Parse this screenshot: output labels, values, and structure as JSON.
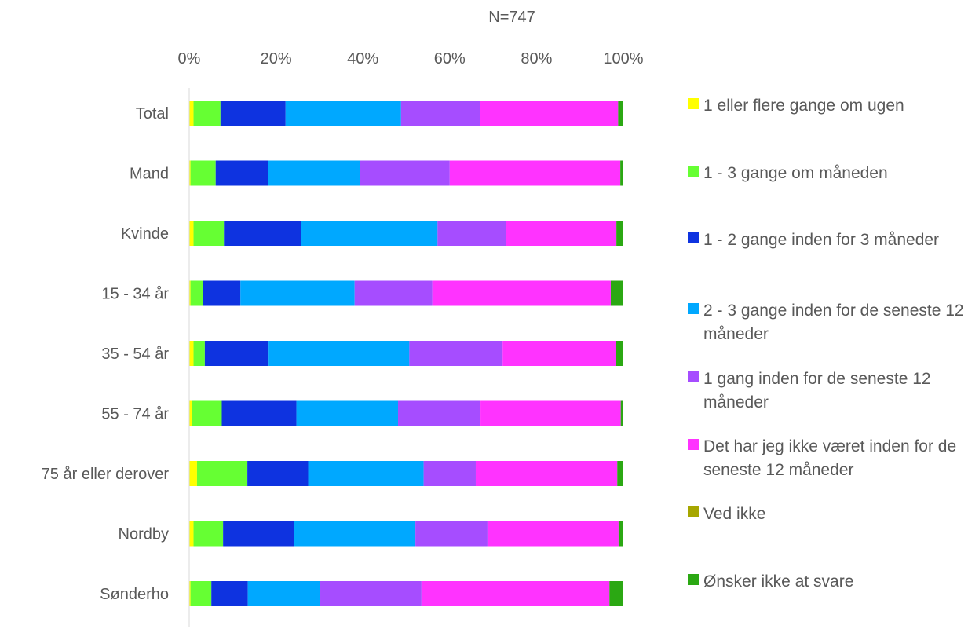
{
  "chart_data": {
    "type": "bar",
    "orientation": "horizontal",
    "stacked": "percent",
    "title": "N=747",
    "xlim": [
      0,
      100
    ],
    "x_ticks": [
      "0%",
      "20%",
      "40%",
      "60%",
      "80%",
      "100%"
    ],
    "grid": false,
    "legend_position": "right",
    "categories": [
      "Total",
      "Mand",
      "Kvinde",
      "15 - 34 år",
      "35 - 54 år",
      "55 - 74 år",
      "75 år eller derover",
      "Nordby",
      "Sønderho"
    ],
    "series": [
      {
        "name": "1 eller flere gange om ugen",
        "color": "#FFFF00",
        "values": [
          1,
          0.3,
          1,
          0.3,
          1,
          0.7,
          1.8,
          1,
          0.3
        ]
      },
      {
        "name": "1 - 3 gange om måneden",
        "color": "#66FF33",
        "values": [
          6.2,
          5.8,
          7,
          2.8,
          2.6,
          6.8,
          11.6,
          6.8,
          4.8
        ]
      },
      {
        "name": "1 - 2 gange inden for 3 måneder",
        "color": "#0E33E0",
        "values": [
          15,
          12,
          17.7,
          8.7,
          14.7,
          17.2,
          14,
          16.4,
          8.4
        ]
      },
      {
        "name": "2 - 3 gange inden for de seneste 12 måneder",
        "color": "#00A8FF",
        "values": [
          26.6,
          21.3,
          31.5,
          26.3,
          32.4,
          23.4,
          26.6,
          27.9,
          16.7
        ]
      },
      {
        "name": "1 gang inden for de seneste 12 måneder",
        "color": "#A64DFF",
        "values": [
          18.2,
          20.6,
          15.8,
          17.9,
          21.5,
          19,
          12,
          16.6,
          23.3
        ]
      },
      {
        "name": "Det har jeg ikke været inden for de seneste 12 måneder",
        "color": "#FF33FF",
        "values": [
          31.8,
          39.3,
          25.4,
          41.1,
          26,
          32.3,
          32.6,
          30.2,
          43.3
        ]
      },
      {
        "name": "Ved ikke",
        "color": "#A6A600",
        "values": [
          0,
          0,
          0,
          0,
          0,
          0,
          0,
          0,
          0
        ]
      },
      {
        "name": "Ønsker ikke at svare",
        "color": "#2BA813",
        "values": [
          1.2,
          0.7,
          1.6,
          2.9,
          1.8,
          0.6,
          1.4,
          1.1,
          3.2
        ]
      }
    ]
  }
}
